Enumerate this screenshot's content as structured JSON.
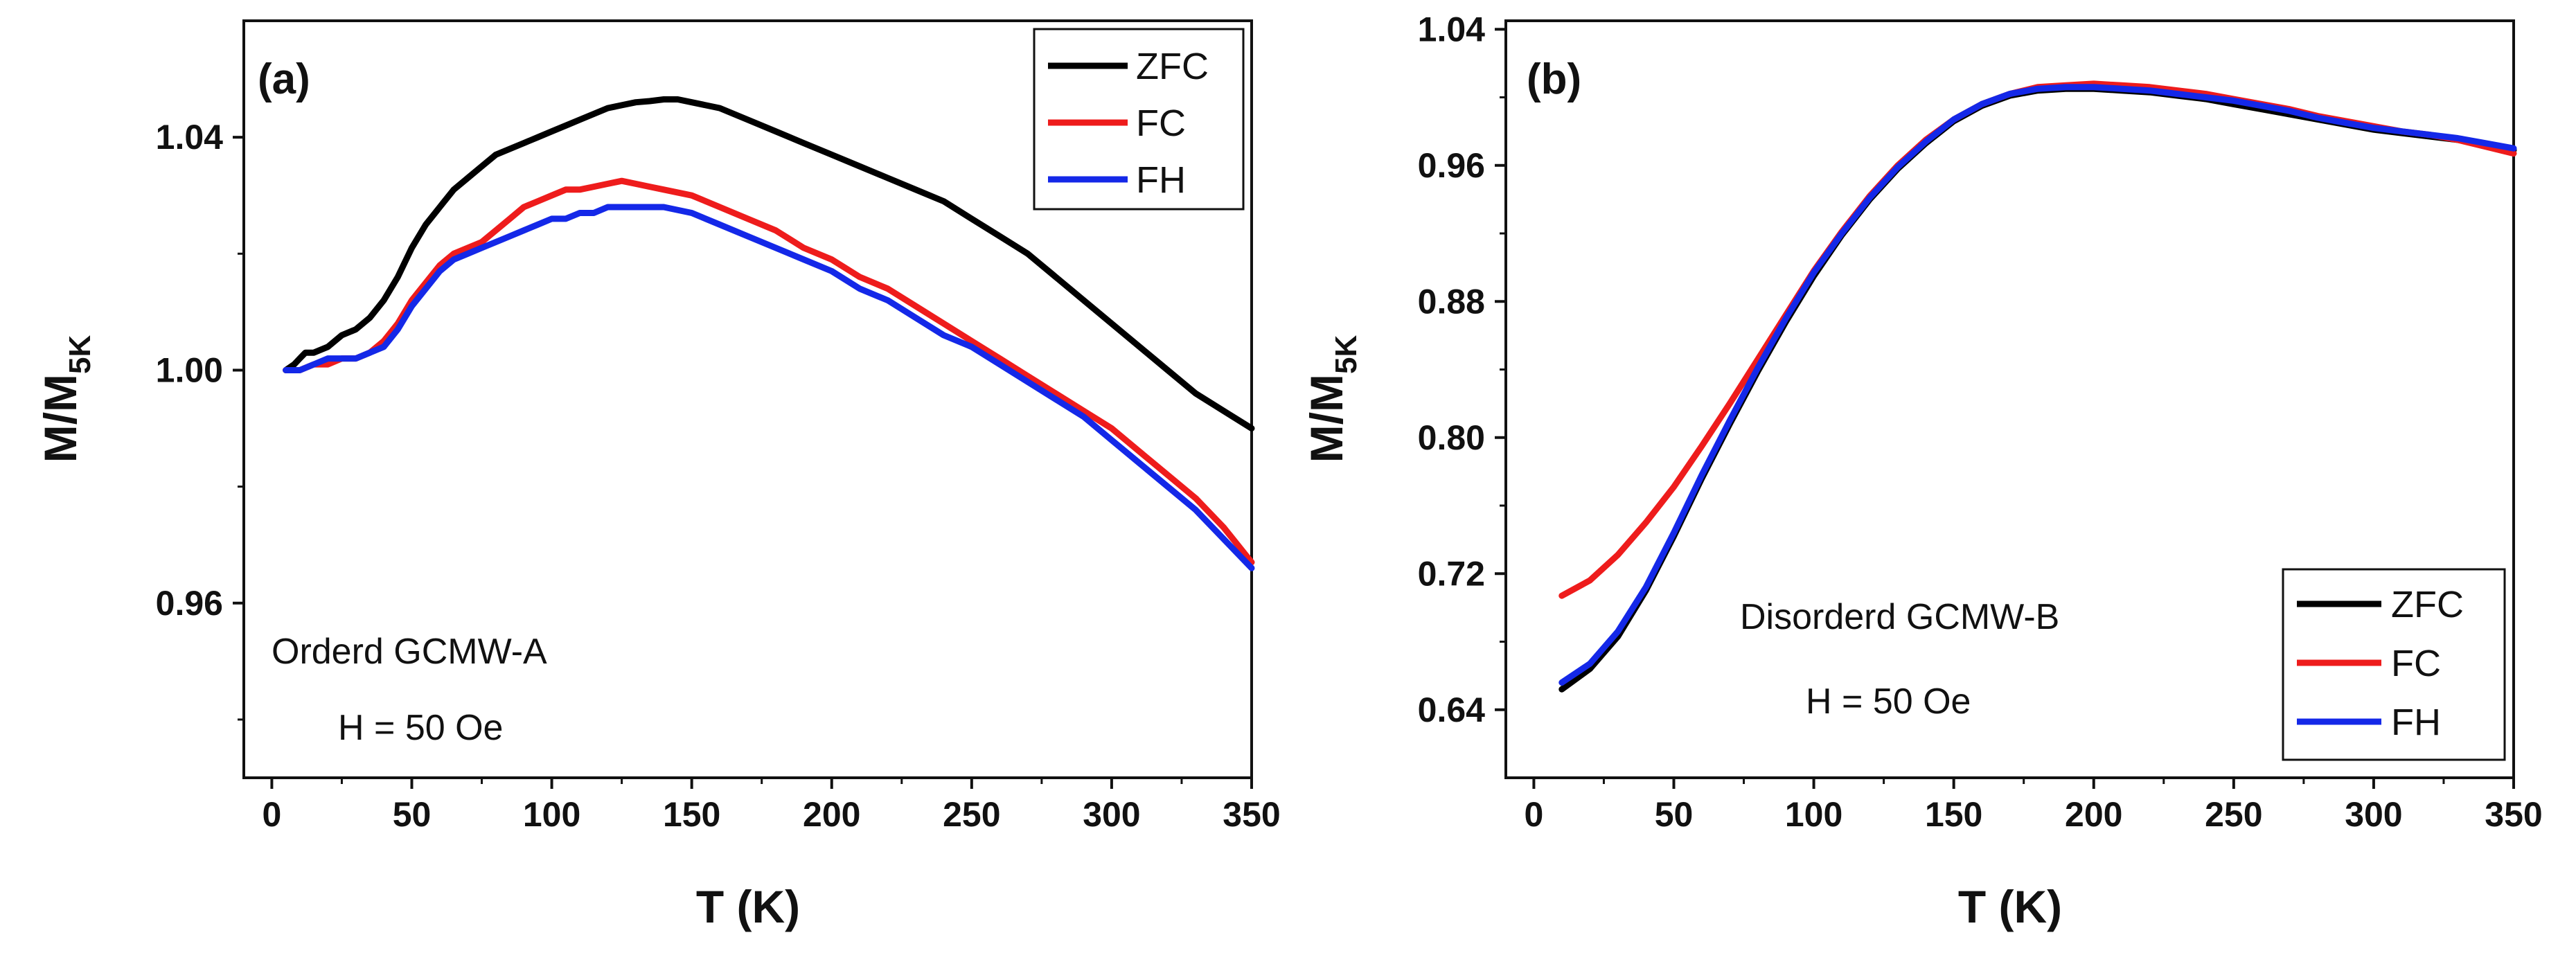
{
  "chart_data": [
    {
      "type": "line",
      "panel_label": "(a)",
      "xlabel": "T (K)",
      "ylabel_main": "M/M",
      "ylabel_sub": "5K",
      "xlim": [
        -10,
        350
      ],
      "ylim": [
        0.93,
        1.06
      ],
      "xticks": [
        0,
        50,
        100,
        150,
        200,
        250,
        300,
        350
      ],
      "yticks": [
        0.96,
        1.0,
        1.04
      ],
      "ytick_labels": [
        "0.96",
        "1.00",
        "1.04"
      ],
      "minor_yticks": [
        0.94,
        0.98,
        1.02
      ],
      "legend_position": "top-right",
      "annotations": [
        "Orderd GCMW-A",
        "H = 50 Oe"
      ],
      "series": [
        {
          "name": "ZFC",
          "color": "#000000",
          "x": [
            5,
            8,
            10,
            12,
            15,
            20,
            25,
            30,
            35,
            40,
            45,
            50,
            55,
            60,
            65,
            70,
            75,
            80,
            85,
            90,
            95,
            100,
            105,
            110,
            115,
            120,
            125,
            130,
            135,
            140,
            145,
            150,
            160,
            170,
            180,
            190,
            200,
            210,
            220,
            230,
            240,
            250,
            260,
            270,
            280,
            290,
            300,
            310,
            320,
            330,
            340,
            350
          ],
          "y": [
            1.0,
            1.001,
            1.002,
            1.003,
            1.003,
            1.004,
            1.006,
            1.007,
            1.009,
            1.012,
            1.016,
            1.021,
            1.025,
            1.028,
            1.031,
            1.033,
            1.035,
            1.037,
            1.038,
            1.039,
            1.04,
            1.041,
            1.042,
            1.043,
            1.044,
            1.045,
            1.0455,
            1.046,
            1.0462,
            1.0465,
            1.0465,
            1.046,
            1.045,
            1.043,
            1.041,
            1.039,
            1.037,
            1.035,
            1.033,
            1.031,
            1.029,
            1.026,
            1.023,
            1.02,
            1.016,
            1.012,
            1.008,
            1.004,
            1.0,
            0.996,
            0.993,
            0.99
          ]
        },
        {
          "name": "FC",
          "color": "#ee1c1c",
          "x": [
            5,
            10,
            15,
            20,
            25,
            30,
            35,
            40,
            45,
            50,
            55,
            60,
            65,
            70,
            75,
            80,
            85,
            90,
            95,
            100,
            105,
            110,
            115,
            120,
            125,
            130,
            135,
            140,
            150,
            160,
            170,
            180,
            190,
            200,
            210,
            220,
            230,
            240,
            250,
            260,
            270,
            280,
            290,
            300,
            310,
            320,
            330,
            340,
            350
          ],
          "y": [
            1.0,
            1.0,
            1.001,
            1.001,
            1.002,
            1.002,
            1.003,
            1.005,
            1.008,
            1.012,
            1.015,
            1.018,
            1.02,
            1.021,
            1.022,
            1.024,
            1.026,
            1.028,
            1.029,
            1.03,
            1.031,
            1.031,
            1.0315,
            1.032,
            1.0325,
            1.032,
            1.0315,
            1.031,
            1.03,
            1.028,
            1.026,
            1.024,
            1.021,
            1.019,
            1.016,
            1.014,
            1.011,
            1.008,
            1.005,
            1.002,
            0.999,
            0.996,
            0.993,
            0.99,
            0.986,
            0.982,
            0.978,
            0.973,
            0.967
          ]
        },
        {
          "name": "FH",
          "color": "#1428e8",
          "x": [
            5,
            10,
            15,
            20,
            25,
            30,
            35,
            40,
            45,
            50,
            55,
            60,
            65,
            70,
            75,
            80,
            85,
            90,
            95,
            100,
            105,
            110,
            115,
            120,
            125,
            130,
            135,
            140,
            150,
            160,
            170,
            180,
            190,
            200,
            210,
            220,
            230,
            240,
            250,
            260,
            270,
            280,
            290,
            300,
            310,
            320,
            330,
            340,
            350
          ],
          "y": [
            1.0,
            1.0,
            1.001,
            1.002,
            1.002,
            1.002,
            1.003,
            1.004,
            1.007,
            1.011,
            1.014,
            1.017,
            1.019,
            1.02,
            1.021,
            1.022,
            1.023,
            1.024,
            1.025,
            1.026,
            1.026,
            1.027,
            1.027,
            1.028,
            1.028,
            1.028,
            1.028,
            1.028,
            1.027,
            1.025,
            1.023,
            1.021,
            1.019,
            1.017,
            1.014,
            1.012,
            1.009,
            1.006,
            1.004,
            1.001,
            0.998,
            0.995,
            0.992,
            0.988,
            0.984,
            0.98,
            0.976,
            0.971,
            0.966
          ]
        }
      ]
    },
    {
      "type": "line",
      "panel_label": "(b)",
      "xlabel": "T (K)",
      "ylabel_main": "M/M",
      "ylabel_sub": "5K",
      "xlim": [
        -10,
        350
      ],
      "ylim": [
        0.6,
        1.045
      ],
      "xticks": [
        0,
        50,
        100,
        150,
        200,
        250,
        300,
        350
      ],
      "yticks": [
        0.64,
        0.72,
        0.8,
        0.88,
        0.96,
        1.04
      ],
      "ytick_labels": [
        "0.64",
        "0.72",
        "0.80",
        "0.88",
        "0.96",
        "1.04"
      ],
      "minor_yticks": [
        0.68,
        0.76,
        0.84,
        0.92,
        1.0
      ],
      "legend_position": "bottom-right",
      "annotations": [
        "Disorderd GCMW-B",
        "H = 50 Oe"
      ],
      "series": [
        {
          "name": "ZFC",
          "color": "#000000",
          "x": [
            10,
            20,
            30,
            40,
            50,
            60,
            70,
            80,
            90,
            100,
            110,
            120,
            130,
            140,
            150,
            160,
            170,
            180,
            190,
            200,
            210,
            220,
            230,
            240,
            250,
            260,
            270,
            280,
            290,
            300,
            310,
            320,
            330,
            340,
            350
          ],
          "y": [
            0.652,
            0.664,
            0.683,
            0.71,
            0.742,
            0.776,
            0.808,
            0.839,
            0.868,
            0.895,
            0.919,
            0.94,
            0.958,
            0.973,
            0.986,
            0.995,
            1.001,
            1.004,
            1.005,
            1.005,
            1.004,
            1.003,
            1.001,
            0.999,
            0.996,
            0.993,
            0.99,
            0.987,
            0.984,
            0.981,
            0.979,
            0.977,
            0.975,
            0.972,
            0.969
          ]
        },
        {
          "name": "FC",
          "color": "#ee1c1c",
          "x": [
            10,
            20,
            30,
            40,
            50,
            60,
            70,
            80,
            90,
            100,
            110,
            120,
            130,
            140,
            150,
            160,
            170,
            180,
            190,
            200,
            210,
            220,
            230,
            240,
            250,
            260,
            270,
            280,
            290,
            300,
            310,
            320,
            330,
            340,
            350
          ],
          "y": [
            0.707,
            0.716,
            0.731,
            0.75,
            0.771,
            0.795,
            0.82,
            0.846,
            0.872,
            0.898,
            0.921,
            0.942,
            0.96,
            0.975,
            0.987,
            0.996,
            1.002,
            1.006,
            1.007,
            1.008,
            1.007,
            1.006,
            1.004,
            1.002,
            0.999,
            0.996,
            0.993,
            0.989,
            0.986,
            0.983,
            0.98,
            0.978,
            0.975,
            0.971,
            0.967
          ]
        },
        {
          "name": "FH",
          "color": "#1428e8",
          "x": [
            10,
            20,
            30,
            40,
            50,
            60,
            70,
            80,
            90,
            100,
            110,
            120,
            130,
            140,
            150,
            160,
            170,
            180,
            190,
            200,
            210,
            220,
            230,
            240,
            250,
            260,
            270,
            280,
            290,
            300,
            310,
            320,
            330,
            340,
            350
          ],
          "y": [
            0.656,
            0.667,
            0.686,
            0.712,
            0.744,
            0.778,
            0.81,
            0.841,
            0.87,
            0.897,
            0.92,
            0.941,
            0.959,
            0.974,
            0.987,
            0.996,
            1.002,
            1.005,
            1.006,
            1.006,
            1.005,
            1.004,
            1.002,
            1.0,
            0.998,
            0.995,
            0.992,
            0.988,
            0.985,
            0.982,
            0.98,
            0.978,
            0.976,
            0.973,
            0.97
          ]
        }
      ]
    }
  ]
}
